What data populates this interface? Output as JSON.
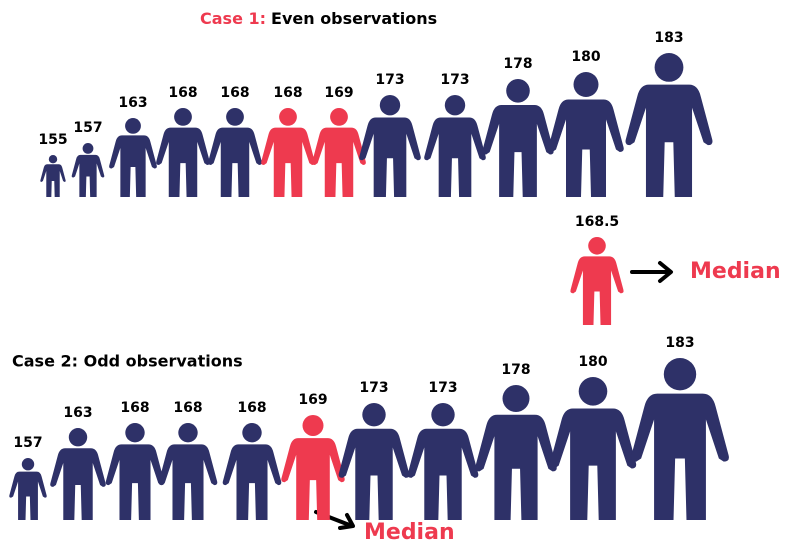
{
  "case1": {
    "title_prefix": "Case 1:",
    "title_rest": "Even observations",
    "people": [
      {
        "label": "155",
        "color": "#2e3168"
      },
      {
        "label": "157",
        "color": "#2e3168"
      },
      {
        "label": "163",
        "color": "#2e3168"
      },
      {
        "label": "168",
        "color": "#2e3168"
      },
      {
        "label": "168",
        "color": "#2e3168"
      },
      {
        "label": "168",
        "color": "#ee3a4f"
      },
      {
        "label": "169",
        "color": "#ee3a4f"
      },
      {
        "label": "173",
        "color": "#2e3168"
      },
      {
        "label": "173",
        "color": "#2e3168"
      },
      {
        "label": "178",
        "color": "#2e3168"
      },
      {
        "label": "180",
        "color": "#2e3168"
      },
      {
        "label": "183",
        "color": "#2e3168"
      }
    ],
    "median_person": {
      "label": "168.5",
      "color": "#ee3a4f"
    },
    "median_text": "Median"
  },
  "case2": {
    "title": "Case 2: Odd observations",
    "people": [
      {
        "label": "157",
        "color": "#2e3168"
      },
      {
        "label": "163",
        "color": "#2e3168"
      },
      {
        "label": "168",
        "color": "#2e3168"
      },
      {
        "label": "168",
        "color": "#2e3168"
      },
      {
        "label": "168",
        "color": "#2e3168"
      },
      {
        "label": "169",
        "color": "#ee3a4f"
      },
      {
        "label": "173",
        "color": "#2e3168"
      },
      {
        "label": "173",
        "color": "#2e3168"
      },
      {
        "label": "178",
        "color": "#2e3168"
      },
      {
        "label": "180",
        "color": "#2e3168"
      },
      {
        "label": "183",
        "color": "#2e3168"
      }
    ],
    "median_text": "Median"
  }
}
